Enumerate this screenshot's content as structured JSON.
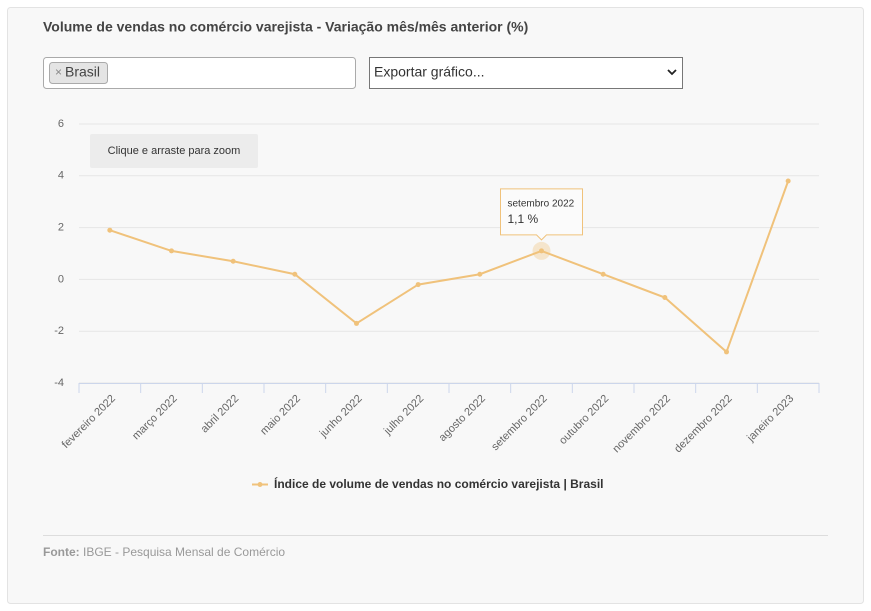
{
  "header": {
    "title": "Volume de vendas no comércio varejista - Variação mês/mês anterior (%)"
  },
  "controls": {
    "selected_tag": "Brasil",
    "tag_remove": "×",
    "export_select": "Exportar gráfico..."
  },
  "chart_data": {
    "type": "line",
    "zoom_hint": "Clique e arraste para zoom",
    "categories": [
      "fevereiro 2022",
      "março 2022",
      "abril 2022",
      "maio 2022",
      "junho 2022",
      "julho 2022",
      "agosto 2022",
      "setembro 2022",
      "outubro 2022",
      "novembro 2022",
      "dezembro 2022",
      "janeiro 2023"
    ],
    "series": [
      {
        "name": "Índice de volume de vendas no comércio varejista | Brasil",
        "color": "#f0c27b",
        "values": [
          1.9,
          1.1,
          0.7,
          0.2,
          -1.7,
          -0.2,
          0.2,
          1.1,
          0.2,
          -0.7,
          -2.8,
          3.8
        ]
      }
    ],
    "tooltip": {
      "value_label": "1,1 %"
    },
    "ylim": [
      -4,
      6
    ],
    "yticks": [
      -4,
      -2,
      0,
      2,
      4,
      6
    ],
    "grid": true,
    "legend": "bottom"
  },
  "footer": {
    "label": "Fonte:",
    "text": "IBGE - Pesquisa Mensal de Comércio"
  }
}
